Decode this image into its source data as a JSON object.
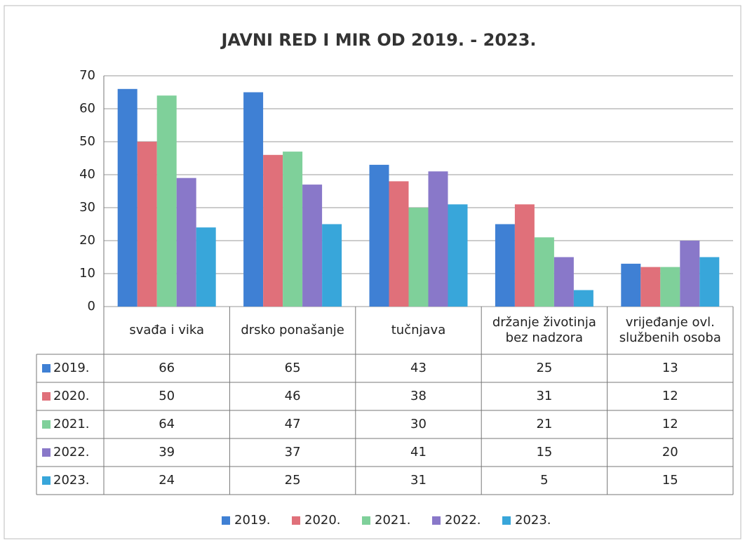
{
  "chart_data": {
    "type": "bar",
    "title": "JAVNI RED I MIR OD 2019. - 2023.",
    "categories": [
      "svađa i vika",
      "drsko ponašanje",
      "tučnjava",
      "držanje životinja bez nadzora",
      "vrijeđanje ovl. službenih osoba"
    ],
    "series": [
      {
        "name": "2019.",
        "color": "#3f80d4",
        "values": [
          66,
          65,
          43,
          25,
          13
        ]
      },
      {
        "name": "2020.",
        "color": "#e0707a",
        "values": [
          50,
          46,
          38,
          31,
          12
        ]
      },
      {
        "name": "2021.",
        "color": "#7fd09a",
        "values": [
          64,
          47,
          30,
          21,
          12
        ]
      },
      {
        "name": "2022.",
        "color": "#8978c9",
        "values": [
          39,
          37,
          41,
          15,
          20
        ]
      },
      {
        "name": "2023.",
        "color": "#38a6da",
        "values": [
          24,
          25,
          31,
          5,
          15
        ]
      }
    ],
    "ylim": [
      0,
      70
    ],
    "yticks": [
      0,
      10,
      20,
      30,
      40,
      50,
      60,
      70
    ],
    "grid": true,
    "legend": "bottom"
  }
}
